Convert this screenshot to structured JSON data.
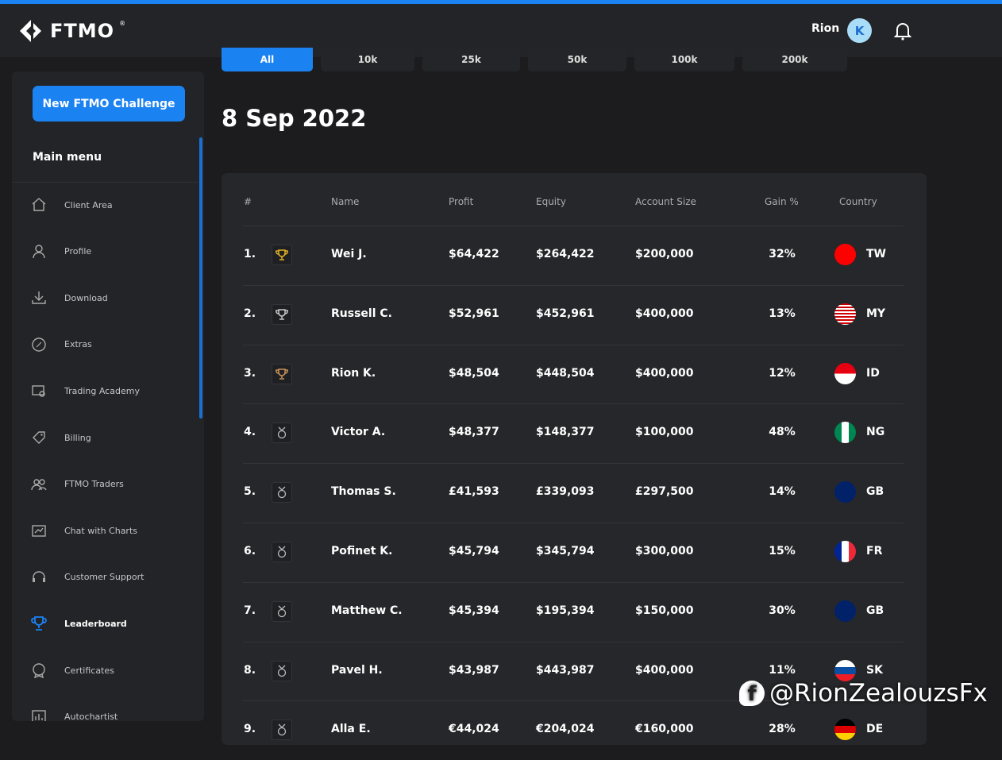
{
  "header": {
    "logo": "FTMO",
    "user_name": "Rion",
    "avatar_initial": "K"
  },
  "sidebar": {
    "new_challenge": "New FTMO Challenge",
    "menu_title": "Main menu",
    "items": [
      {
        "label": "Client Area",
        "icon": "home-icon"
      },
      {
        "label": "Profile",
        "icon": "user-icon"
      },
      {
        "label": "Download",
        "icon": "download-icon"
      },
      {
        "label": "Extras",
        "icon": "percent-badge-icon"
      },
      {
        "label": "Trading Academy",
        "icon": "academy-icon"
      },
      {
        "label": "Billing",
        "icon": "tag-icon"
      },
      {
        "label": "FTMO Traders",
        "icon": "users-icon"
      },
      {
        "label": "Chat with Charts",
        "icon": "chart-chat-icon"
      },
      {
        "label": "Customer Support",
        "icon": "headset-icon"
      },
      {
        "label": "Leaderboard",
        "icon": "trophy-icon",
        "active": true
      },
      {
        "label": "Certificates",
        "icon": "certificate-icon"
      },
      {
        "label": "Autochartist",
        "icon": "chart-icon"
      }
    ]
  },
  "tabs": [
    {
      "label": "All",
      "active": true
    },
    {
      "label": "10k"
    },
    {
      "label": "25k"
    },
    {
      "label": "50k"
    },
    {
      "label": "100k"
    },
    {
      "label": "200k"
    }
  ],
  "date": "8 Sep 2022",
  "table": {
    "headers": {
      "rank": "#",
      "name": "Name",
      "profit": "Profit",
      "equity": "Equity",
      "account": "Account Size",
      "gain": "Gain %",
      "country": "Country"
    },
    "rows": [
      {
        "rank": "1.",
        "medal": "gold",
        "name": "Wei J.",
        "profit": "$64,422",
        "equity": "$264,422",
        "account": "$200,000",
        "gain": "32%",
        "country": "TW"
      },
      {
        "rank": "2.",
        "medal": "silver",
        "name": "Russell C.",
        "profit": "$52,961",
        "equity": "$452,961",
        "account": "$400,000",
        "gain": "13%",
        "country": "MY"
      },
      {
        "rank": "3.",
        "medal": "bronze",
        "name": "Rion K.",
        "profit": "$48,504",
        "equity": "$448,504",
        "account": "$400,000",
        "gain": "12%",
        "country": "ID"
      },
      {
        "rank": "4.",
        "medal": "none",
        "name": "Victor A.",
        "profit": "$48,377",
        "equity": "$148,377",
        "account": "$100,000",
        "gain": "48%",
        "country": "NG"
      },
      {
        "rank": "5.",
        "medal": "none",
        "name": "Thomas S.",
        "profit": "£41,593",
        "equity": "£339,093",
        "account": "£297,500",
        "gain": "14%",
        "country": "GB"
      },
      {
        "rank": "6.",
        "medal": "none",
        "name": "Pofinet K.",
        "profit": "$45,794",
        "equity": "$345,794",
        "account": "$300,000",
        "gain": "15%",
        "country": "FR"
      },
      {
        "rank": "7.",
        "medal": "none",
        "name": "Matthew C.",
        "profit": "$45,394",
        "equity": "$195,394",
        "account": "$150,000",
        "gain": "30%",
        "country": "GB"
      },
      {
        "rank": "8.",
        "medal": "none",
        "name": "Pavel H.",
        "profit": "$43,987",
        "equity": "$443,987",
        "account": "$400,000",
        "gain": "11%",
        "country": "SK"
      },
      {
        "rank": "9.",
        "medal": "none",
        "name": "Alla E.",
        "profit": "€44,024",
        "equity": "€204,024",
        "account": "€160,000",
        "gain": "28%",
        "country": "DE"
      }
    ]
  },
  "watermark": "@RionZealouzsFx",
  "colors": {
    "accent": "#1b82f2",
    "gold": "#e6b422",
    "silver": "#c9c9c9",
    "bronze": "#c8935a"
  }
}
